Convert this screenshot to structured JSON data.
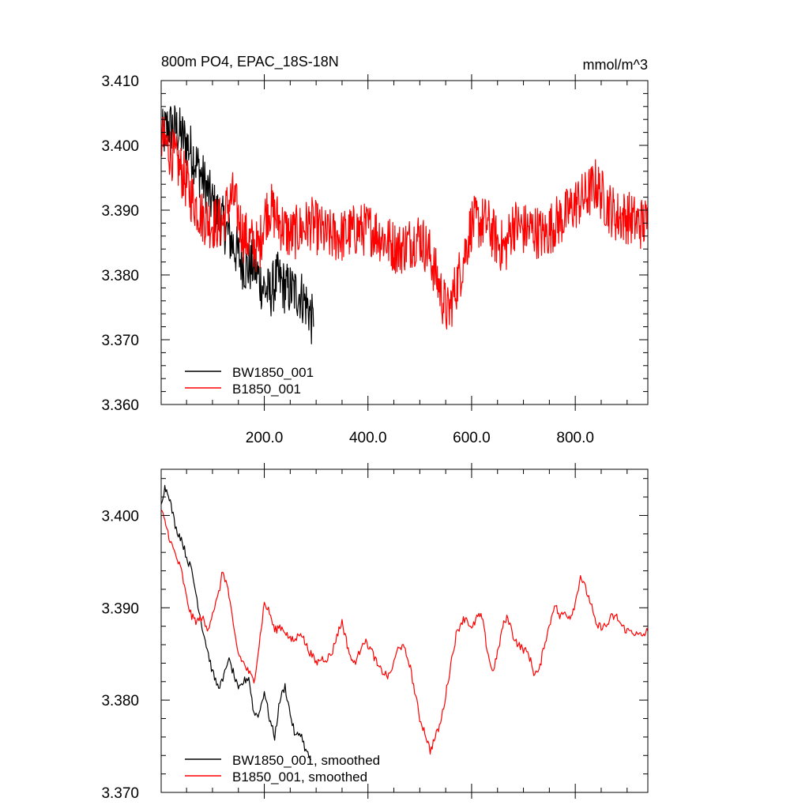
{
  "chart_data": [
    {
      "type": "line",
      "title": "800m PO4, EPAC_18S-18N",
      "units": "mmol/m^3",
      "xlim": [
        1,
        940
      ],
      "ylim": [
        3.36,
        3.41
      ],
      "xticks": [
        200,
        400,
        600,
        800
      ],
      "xtick_labels": [
        "200.0",
        "400.0",
        "600.0",
        "800.0"
      ],
      "yticks": [
        3.36,
        3.37,
        3.38,
        3.39,
        3.4,
        3.41
      ],
      "ytick_labels": [
        "3.360",
        "3.370",
        "3.380",
        "3.390",
        "3.400",
        "3.410"
      ],
      "grid": false,
      "legend_position": "bottom-left",
      "series": [
        {
          "name": "BW1850_001",
          "color": "#000000",
          "x": [
            1,
            15,
            30,
            45,
            60,
            75,
            90,
            105,
            120,
            135,
            150,
            165,
            180,
            195,
            210,
            225,
            240,
            255,
            270,
            285,
            295
          ],
          "y": [
            3.401,
            3.403,
            3.4025,
            3.401,
            3.399,
            3.396,
            3.393,
            3.39,
            3.388,
            3.3855,
            3.383,
            3.381,
            3.3815,
            3.3785,
            3.377,
            3.3795,
            3.378,
            3.3775,
            3.377,
            3.375,
            3.372
          ]
        },
        {
          "name": "B1850_001",
          "color": "#ff0000",
          "x": [
            1,
            20,
            40,
            60,
            80,
            100,
            120,
            130,
            140,
            150,
            160,
            175,
            190,
            200,
            210,
            230,
            250,
            270,
            290,
            320,
            350,
            380,
            410,
            440,
            460,
            480,
            500,
            520,
            535,
            545,
            555,
            565,
            580,
            600,
            630,
            650,
            665,
            680,
            700,
            720,
            740,
            760,
            780,
            800,
            820,
            840,
            860,
            880,
            900,
            920,
            940
          ],
          "y": [
            3.401,
            3.399,
            3.396,
            3.392,
            3.389,
            3.388,
            3.388,
            3.391,
            3.392,
            3.389,
            3.386,
            3.385,
            3.384,
            3.389,
            3.3905,
            3.388,
            3.386,
            3.387,
            3.388,
            3.386,
            3.386,
            3.387,
            3.387,
            3.385,
            3.384,
            3.385,
            3.386,
            3.383,
            3.379,
            3.376,
            3.374,
            3.377,
            3.381,
            3.388,
            3.388,
            3.385,
            3.384,
            3.388,
            3.387,
            3.387,
            3.386,
            3.388,
            3.389,
            3.391,
            3.392,
            3.394,
            3.391,
            3.389,
            3.389,
            3.388,
            3.388
          ]
        }
      ]
    },
    {
      "type": "line",
      "xlim": [
        1,
        940
      ],
      "ylim": [
        3.37,
        3.405
      ],
      "xticks": [
        200,
        400,
        600,
        800
      ],
      "yticks": [
        3.37,
        3.38,
        3.39,
        3.4
      ],
      "ytick_labels": [
        "3.370",
        "3.380",
        "3.390",
        "3.400"
      ],
      "grid": false,
      "legend_position": "bottom-left",
      "series": [
        {
          "name": "BW1850_001, smoothed",
          "color": "#000000",
          "x": [
            1,
            8,
            15,
            22,
            30,
            40,
            50,
            60,
            70,
            80,
            90,
            100,
            110,
            120,
            130,
            140,
            150,
            160,
            170,
            180,
            190,
            200,
            210,
            220,
            230,
            240,
            250,
            260,
            270,
            280,
            290
          ],
          "y": [
            3.4015,
            3.403,
            3.4025,
            3.4005,
            3.3985,
            3.3975,
            3.3955,
            3.394,
            3.391,
            3.388,
            3.3855,
            3.383,
            3.3815,
            3.382,
            3.3845,
            3.383,
            3.381,
            3.382,
            3.3825,
            3.3785,
            3.3785,
            3.381,
            3.378,
            3.376,
            3.38,
            3.3815,
            3.3785,
            3.376,
            3.3765,
            3.3745,
            3.3735
          ]
        },
        {
          "name": "B1850_001, smoothed",
          "color": "#ff0000",
          "x": [
            1,
            10,
            20,
            30,
            40,
            50,
            60,
            70,
            80,
            90,
            100,
            110,
            120,
            130,
            140,
            150,
            160,
            170,
            180,
            190,
            200,
            210,
            220,
            230,
            240,
            250,
            260,
            270,
            280,
            290,
            300,
            310,
            320,
            330,
            340,
            350,
            360,
            370,
            380,
            390,
            400,
            410,
            420,
            430,
            440,
            450,
            460,
            470,
            480,
            490,
            500,
            510,
            520,
            530,
            540,
            550,
            560,
            570,
            580,
            590,
            600,
            610,
            620,
            630,
            640,
            650,
            660,
            670,
            680,
            690,
            700,
            710,
            720,
            730,
            740,
            750,
            760,
            770,
            780,
            790,
            800,
            810,
            820,
            830,
            840,
            850,
            860,
            870,
            880,
            890,
            900,
            910,
            920,
            930,
            940
          ],
          "y": [
            3.4005,
            3.399,
            3.397,
            3.3955,
            3.394,
            3.391,
            3.389,
            3.3885,
            3.389,
            3.3875,
            3.3895,
            3.391,
            3.394,
            3.392,
            3.388,
            3.385,
            3.384,
            3.383,
            3.382,
            3.386,
            3.3905,
            3.3895,
            3.3875,
            3.388,
            3.3875,
            3.3865,
            3.3865,
            3.3875,
            3.386,
            3.385,
            3.384,
            3.3845,
            3.3845,
            3.385,
            3.387,
            3.3885,
            3.386,
            3.384,
            3.3845,
            3.3865,
            3.386,
            3.385,
            3.3835,
            3.383,
            3.3825,
            3.384,
            3.386,
            3.3855,
            3.384,
            3.381,
            3.378,
            3.3765,
            3.3745,
            3.376,
            3.3775,
            3.3805,
            3.384,
            3.387,
            3.3885,
            3.389,
            3.3875,
            3.389,
            3.389,
            3.3855,
            3.383,
            3.385,
            3.388,
            3.389,
            3.387,
            3.386,
            3.3855,
            3.385,
            3.383,
            3.383,
            3.386,
            3.388,
            3.3905,
            3.389,
            3.3895,
            3.389,
            3.3905,
            3.3935,
            3.392,
            3.3905,
            3.388,
            3.388,
            3.388,
            3.389,
            3.389,
            3.388,
            3.3875,
            3.3875,
            3.387,
            3.387,
            3.3875
          ]
        }
      ]
    }
  ]
}
